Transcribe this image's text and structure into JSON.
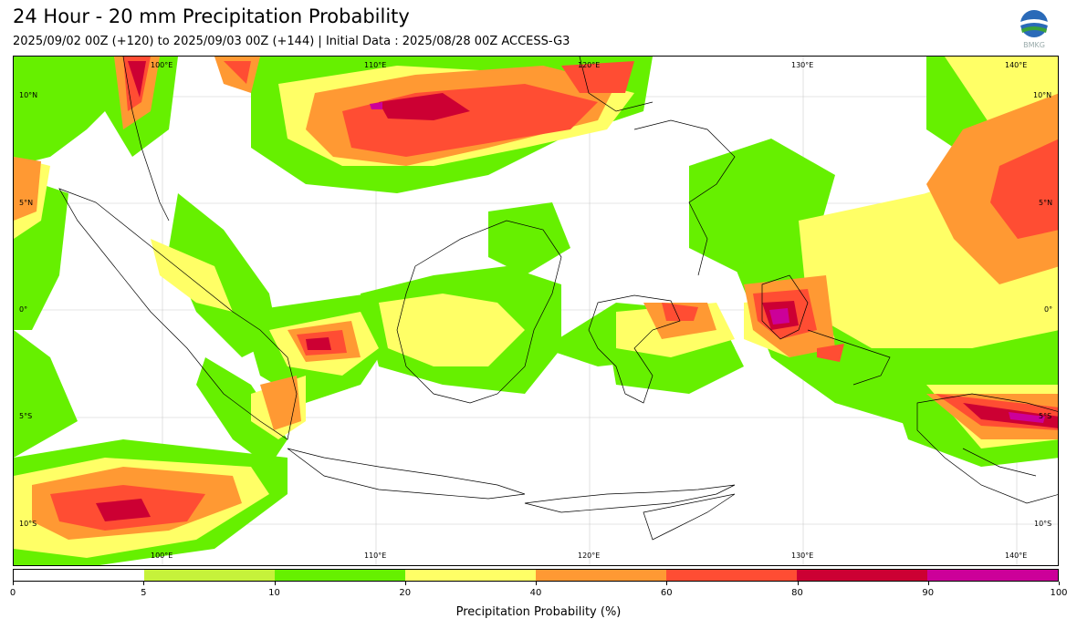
{
  "header": {
    "title": "24 Hour - 20 mm Precipitation Probability",
    "subtitle": "2025/09/02 00Z (+120) to 2025/09/03 00Z (+144) | Initial Data : 2025/08/28 00Z ACCESS-G3",
    "logo_icon": "bmkg-logo-icon"
  },
  "map": {
    "lon_labels": [
      "100°E",
      "110°E",
      "120°E",
      "130°E",
      "140°E"
    ],
    "lat_labels": [
      "10°N",
      "5°N",
      "0°",
      "5°S",
      "10°S"
    ]
  },
  "colorbar": {
    "label": "Precipitation Probability (%)",
    "ticks": [
      "0",
      "5",
      "10",
      "20",
      "40",
      "60",
      "80",
      "90",
      "100"
    ],
    "colors": [
      "#ffffff",
      "#c6f23a",
      "#66f000",
      "#ffff66",
      "#ff9933",
      "#ff4d33",
      "#cc0033",
      "#cc0099"
    ]
  }
}
